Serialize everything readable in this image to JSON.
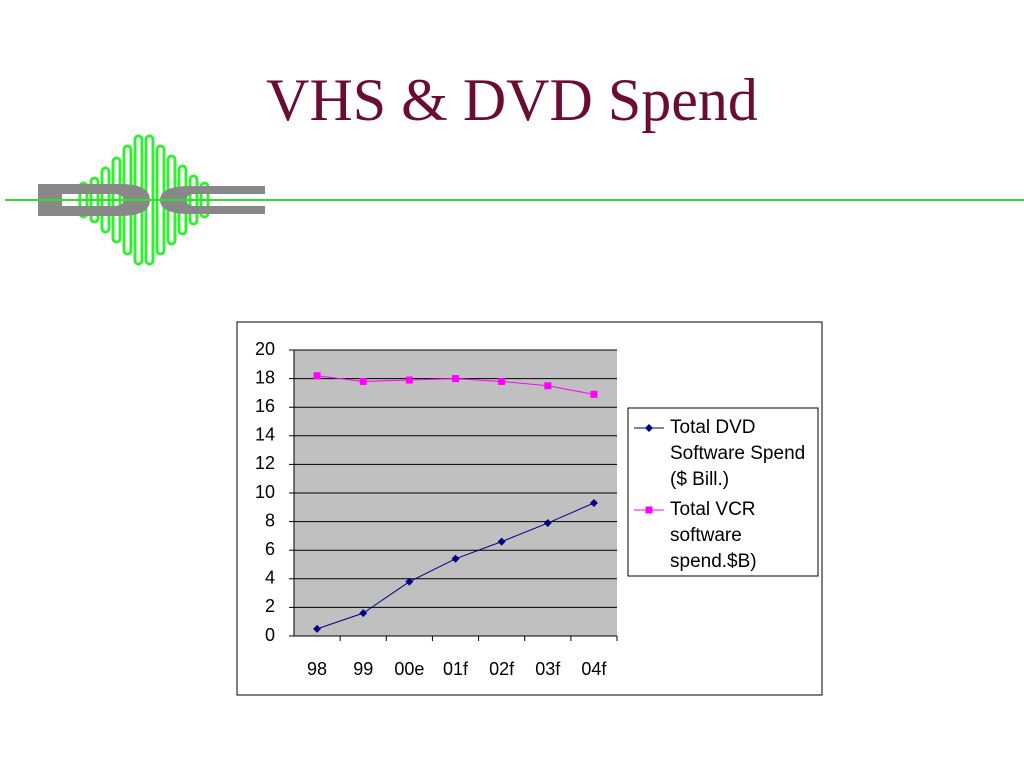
{
  "chart_data": {
    "type": "line",
    "title": "VHS & DVD Spend",
    "categories": [
      "98",
      "99",
      "00e",
      "01f",
      "02f",
      "03f",
      "04f"
    ],
    "series": [
      {
        "name": "Total DVD Software Spend ($ Bill.)",
        "color": "#000080",
        "marker": "diamond",
        "values": [
          0.5,
          1.6,
          3.8,
          5.4,
          6.6,
          7.9,
          9.3
        ]
      },
      {
        "name": "Total VCR software spend.$B)",
        "color": "#ff00ff",
        "marker": "square",
        "values": [
          18.2,
          17.8,
          17.9,
          18.0,
          17.8,
          17.5,
          16.9
        ]
      }
    ],
    "ylim": [
      0,
      20
    ],
    "yticks": [
      0,
      2,
      4,
      6,
      8,
      10,
      12,
      14,
      16,
      18,
      20
    ],
    "grid": true,
    "legend": "right"
  }
}
